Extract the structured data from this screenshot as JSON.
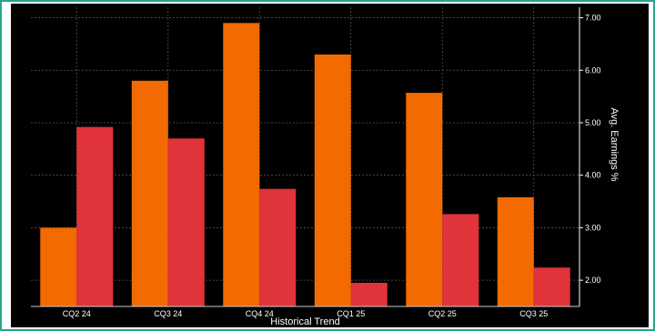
{
  "chart_data": {
    "type": "bar",
    "categories": [
      "CQ2 24",
      "CQ3 24",
      "CQ4 24",
      "CQ1 25",
      "CQ2 25",
      "CQ3 25"
    ],
    "series": [
      {
        "values": [
          3.0,
          5.8,
          6.9,
          6.3,
          5.57,
          3.58
        ],
        "color": "#f26a00"
      },
      {
        "values": [
          4.92,
          4.7,
          3.74,
          1.95,
          3.26,
          2.24
        ],
        "color": "#e0333a"
      }
    ],
    "xlabel": "Historical Trend",
    "ylabel": "Avg. Earnings %",
    "ylim": [
      1.5,
      7.2
    ],
    "yticks": [
      2.0,
      3.0,
      4.0,
      5.0,
      6.0,
      7.0
    ],
    "ytick_labels": [
      "2.00",
      "3.00",
      "4.00",
      "5.00",
      "6.00",
      "7.00"
    ],
    "y_axis_position": "right",
    "grid": true,
    "background": "#000000",
    "grid_color": "#555555"
  }
}
